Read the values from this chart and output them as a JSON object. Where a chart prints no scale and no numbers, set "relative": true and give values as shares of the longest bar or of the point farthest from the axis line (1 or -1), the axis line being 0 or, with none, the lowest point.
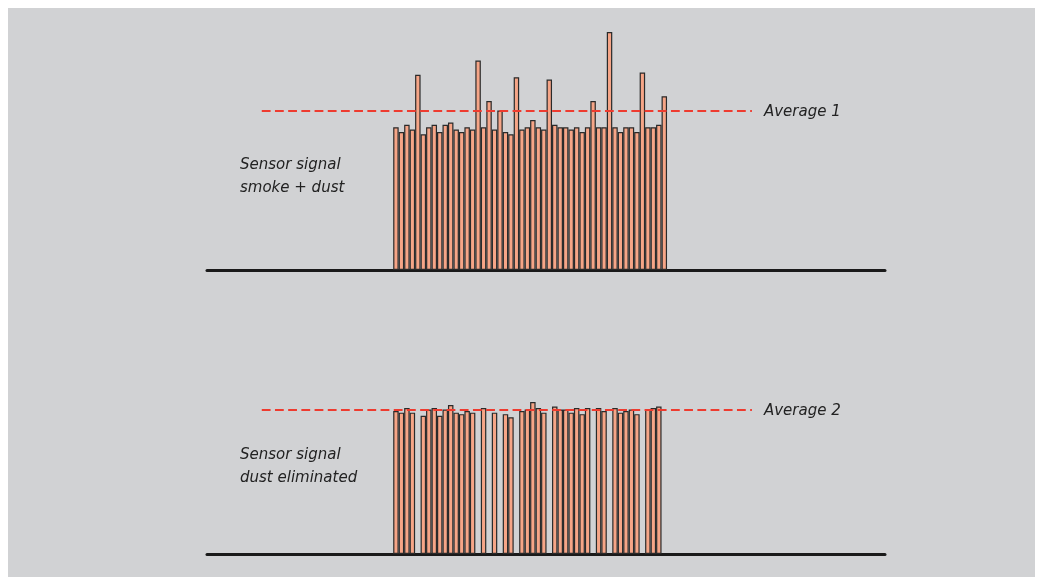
{
  "chart_data": [
    {
      "type": "bar",
      "relative": true,
      "color": "#f6a587",
      "categories": [
        null,
        null,
        null,
        null,
        null,
        null,
        null,
        null,
        null,
        null,
        null,
        null,
        null,
        null,
        null,
        null,
        null,
        null,
        null,
        null,
        null,
        null,
        null,
        null,
        null,
        null,
        null,
        null,
        null,
        null,
        null,
        null,
        null,
        null,
        null,
        null,
        null,
        null,
        null,
        null,
        null,
        null,
        null,
        null,
        null,
        null,
        null,
        null,
        null,
        null
      ],
      "values": [
        0.6,
        0.58,
        0.61,
        0.59,
        0.82,
        0.57,
        0.6,
        0.61,
        0.58,
        0.61,
        0.62,
        0.59,
        0.58,
        0.6,
        0.59,
        0.88,
        0.6,
        0.71,
        0.59,
        0.67,
        0.58,
        0.57,
        0.81,
        0.59,
        0.6,
        0.63,
        0.6,
        0.59,
        0.8,
        0.61,
        0.6,
        0.6,
        0.59,
        0.6,
        0.58,
        0.6,
        0.71,
        0.6,
        0.6,
        1,
        0.6,
        0.58,
        0.6,
        0.6,
        0.58,
        0.83,
        0.6,
        0.6,
        0.61,
        0.73
      ],
      "ref_lines": [
        {
          "axis": "y",
          "value": 0.67,
          "label": "Average 1",
          "color": "#ee3b2f",
          "line_style": "dashed"
        }
      ],
      "annotations": [
        "Sensor signal\nsmoke + dust"
      ]
    },
    {
      "type": "bar",
      "relative": true,
      "color": "#f6a587",
      "categories": [
        null,
        null,
        null,
        null,
        null,
        null,
        null,
        null,
        null,
        null,
        null,
        null,
        null,
        null,
        null,
        null,
        null,
        null,
        null,
        null,
        null,
        null,
        null,
        null,
        null,
        null,
        null,
        null,
        null,
        null,
        null,
        null,
        null,
        null,
        null,
        null,
        null,
        null,
        null,
        null,
        null,
        null,
        null,
        null,
        null,
        null,
        null,
        null,
        null,
        null
      ],
      "values": [
        0.94,
        0.93,
        0.96,
        0.93,
        null,
        0.91,
        0.95,
        0.96,
        0.91,
        0.95,
        0.98,
        0.93,
        0.92,
        0.94,
        0.93,
        null,
        0.96,
        null,
        0.93,
        null,
        0.92,
        0.9,
        null,
        0.94,
        0.95,
        1,
        0.96,
        0.93,
        null,
        0.97,
        0.95,
        0.95,
        0.93,
        0.96,
        0.92,
        0.96,
        null,
        0.96,
        0.94,
        null,
        0.96,
        0.93,
        0.94,
        0.95,
        0.92,
        null,
        0.95,
        0.96,
        0.97,
        null
      ],
      "ref_lines": [
        {
          "axis": "y",
          "value": 0.95,
          "label": "Average 2",
          "color": "#ee3b2f",
          "line_style": "dashed"
        }
      ],
      "annotations": [
        "Sensor signal\ndust eliminated"
      ]
    }
  ]
}
